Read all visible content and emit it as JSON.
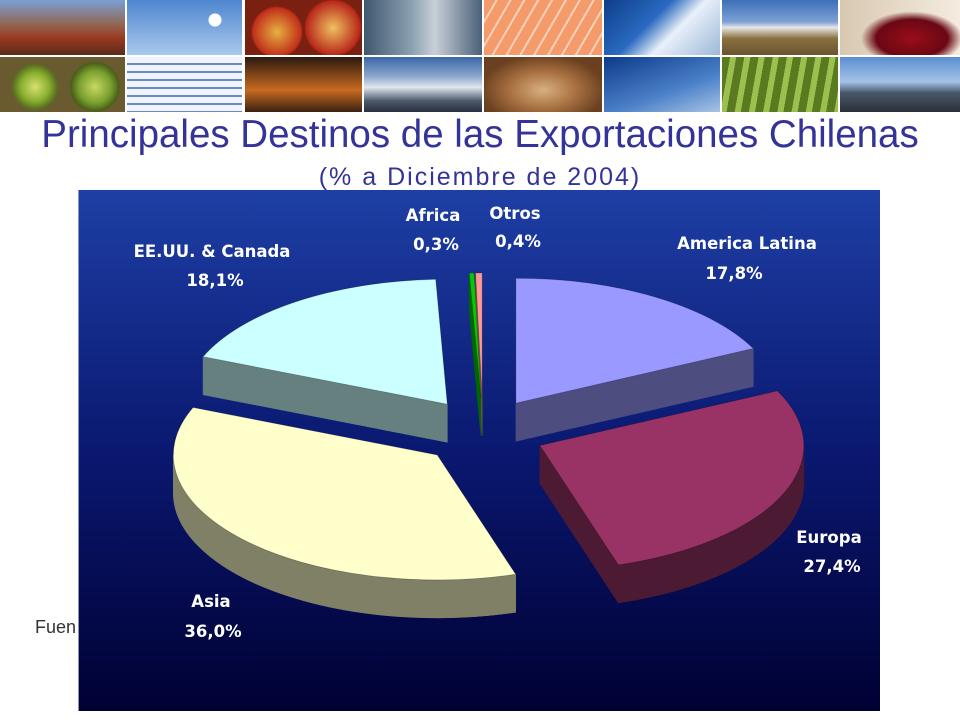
{
  "slide": {
    "source_note": "Fuen"
  },
  "theme": {
    "title_color": "#333399",
    "panel_top": "#1e3fa5",
    "panel_mid": "#0a1870",
    "panel_bottom": "#000033",
    "label_color": "#FFFFFF"
  },
  "chart_data": {
    "type": "pie",
    "three_d": true,
    "exploded": true,
    "legend": "none",
    "title": "Principales Destinos de las Exportaciones Chilenas",
    "subtitle": "(% a Diciembre de 2004)",
    "categories": [
      "America Latina",
      "Europa",
      "Asia",
      "EE.UU. & Canada",
      "Africa",
      "Otros"
    ],
    "values": [
      17.8,
      27.4,
      36.0,
      18.1,
      0.3,
      0.4
    ],
    "value_labels": [
      "17,8%",
      "27,4%",
      "36,0%",
      "18,1%",
      "0,3%",
      "0,4%"
    ],
    "colors": [
      "#9999FF",
      "#993366",
      "#FFFFCC",
      "#CCFFFF",
      "#00CC00",
      "#FF9999"
    ]
  }
}
